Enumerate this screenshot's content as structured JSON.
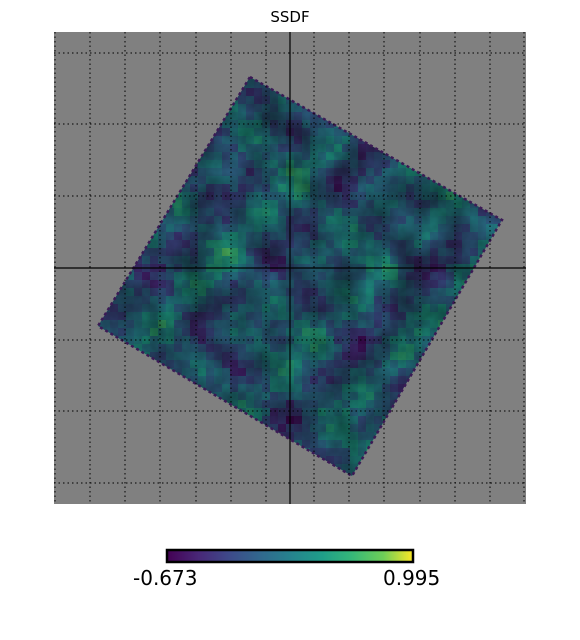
{
  "chart_data": {
    "type": "heatmap",
    "title": "SSDF",
    "projection": "gnomonic",
    "background_color": "#808080",
    "graticule": "dotted",
    "colormap": "viridis",
    "colorbar": {
      "min": -0.673,
      "max": 0.995,
      "min_label": "-0.673",
      "max_label": "0.995",
      "placement": "bottom"
    }
  }
}
